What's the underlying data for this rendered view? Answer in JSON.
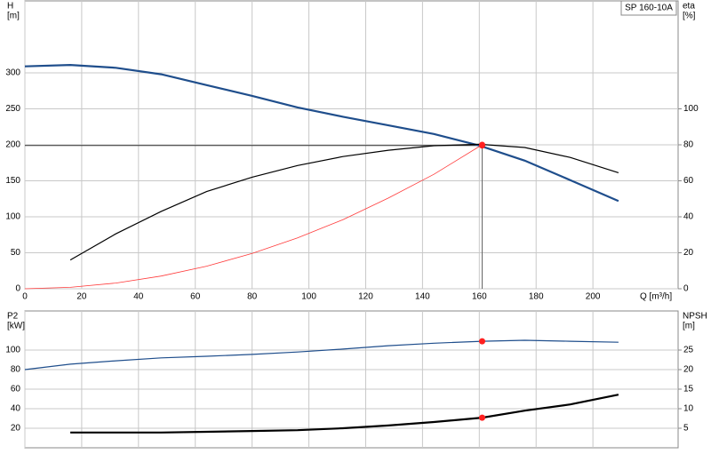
{
  "chart_data": [
    {
      "type": "line",
      "legend_box": "SP 160-10A",
      "ylabel": [
        "H",
        "[m]"
      ],
      "y2label": [
        "eta",
        "[%]"
      ],
      "xlabel": "Q [m³/h]",
      "x": [
        0,
        16,
        32,
        48,
        64,
        80,
        96,
        112,
        128,
        144,
        160,
        176,
        192,
        209
      ],
      "series": [
        {
          "color": "#1f4e8c",
          "width": 2.2,
          "values": [
            309,
            311,
            307,
            298,
            283,
            268,
            252,
            239,
            227,
            215,
            199,
            178,
            151,
            122
          ]
        },
        {
          "color": "#000000",
          "width": 1.2,
          "axis": "y2",
          "values": [
            null,
            16,
            30.5,
            43,
            54,
            62,
            68.5,
            73.5,
            77,
            79.5,
            80.3,
            78.5,
            73,
            64.5
          ]
        },
        {
          "color": "#ff3b3b",
          "width": 0.8,
          "values": [
            0,
            2,
            7.9,
            17.7,
            31.4,
            49,
            70.7,
            96,
            126,
            159,
            197.6,
            null,
            null,
            null
          ]
        }
      ],
      "duty_points": [
        {
          "x": 161,
          "y": 199
        },
        {
          "x": 161,
          "y": 80,
          "axis": "y2"
        }
      ],
      "xlim": [
        0,
        230
      ],
      "xticks": [
        0,
        20,
        40,
        60,
        80,
        100,
        120,
        140,
        160,
        180,
        200
      ],
      "ylim": [
        0,
        400
      ],
      "yticks": [
        0,
        50,
        100,
        150,
        200,
        250,
        300
      ],
      "y2lim": [
        0,
        160
      ],
      "y2ticks": [
        0,
        20,
        40,
        60,
        80,
        100
      ],
      "grid": true
    },
    {
      "type": "line",
      "ylabel": [
        "P2",
        "[kW]"
      ],
      "y2label": [
        "NPSH",
        "[m]"
      ],
      "x": [
        0,
        16,
        32,
        48,
        64,
        80,
        96,
        112,
        128,
        144,
        161,
        176,
        192,
        209
      ],
      "series": [
        {
          "color": "#1f4e8c",
          "width": 1.2,
          "values": [
            80,
            85.5,
            89,
            92,
            93.6,
            95.5,
            98,
            101,
            104.5,
            107,
            109,
            110,
            109,
            108
          ]
        },
        {
          "color": "#000000",
          "width": 2.2,
          "axis": "y2",
          "values": [
            null,
            3.9,
            3.9,
            3.9,
            4.1,
            4.3,
            4.5,
            5,
            5.7,
            6.6,
            7.7,
            9.5,
            11.1,
            13.6
          ]
        }
      ],
      "duty_points": [
        {
          "x": 161,
          "y": 109
        },
        {
          "x": 161,
          "y": 7.7,
          "axis": "y2"
        }
      ],
      "xlim": [
        0,
        230
      ],
      "xticks": [
        0,
        20,
        40,
        60,
        80,
        100,
        120,
        140,
        160,
        180,
        200
      ],
      "ylim": [
        0,
        140
      ],
      "yticks": [
        20,
        40,
        60,
        80,
        100
      ],
      "y2lim": [
        0,
        35
      ],
      "y2ticks": [
        5,
        10,
        15,
        20,
        25
      ],
      "grid": true
    }
  ]
}
